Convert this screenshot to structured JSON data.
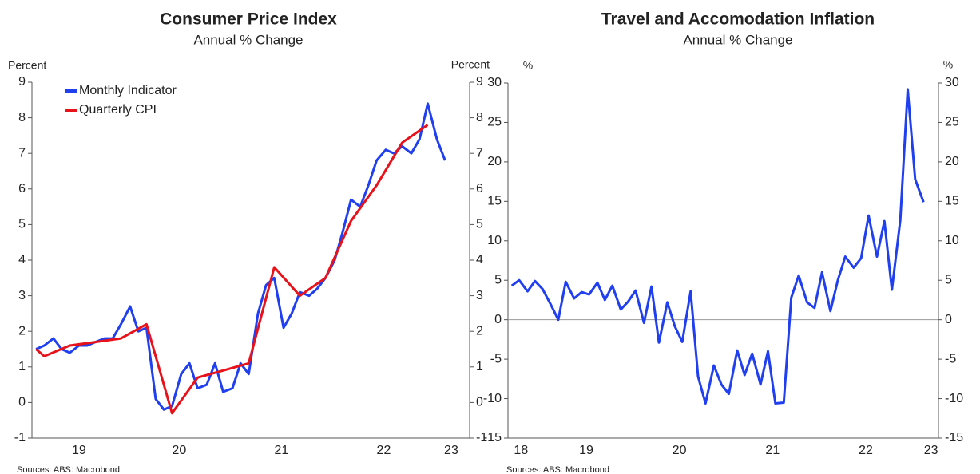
{
  "chart_data": [
    {
      "type": "line",
      "title": "Consumer Price Index",
      "subtitle": "Annual % Change",
      "ylabel": "Percent",
      "y2label": "Percent",
      "source": "Sources: ABS: Macrobond",
      "legend": "upper left",
      "zero_line": false,
      "xlim": [
        19.06,
        23.34
      ],
      "xticks": [
        {
          "value": 19.52,
          "label": "19"
        },
        {
          "value": 20.5,
          "label": "20"
        },
        {
          "value": 21.5,
          "label": "21"
        },
        {
          "value": 22.5,
          "label": "22"
        },
        {
          "value": 23.16,
          "label": "23"
        }
      ],
      "ylim": [
        -1,
        9
      ],
      "yticks": [
        -1,
        0,
        1,
        2,
        3,
        4,
        5,
        6,
        7,
        8,
        9
      ],
      "series": [
        {
          "name": "Monthly Indicator",
          "color": "#1f3ff0",
          "x": [
            19.1,
            19.18,
            19.27,
            19.35,
            19.43,
            19.52,
            19.6,
            19.68,
            19.77,
            19.85,
            19.93,
            20.02,
            20.1,
            20.18,
            20.27,
            20.35,
            20.43,
            20.52,
            20.6,
            20.68,
            20.77,
            20.85,
            20.93,
            21.02,
            21.1,
            21.18,
            21.27,
            21.35,
            21.43,
            21.52,
            21.6,
            21.68,
            21.77,
            21.85,
            21.93,
            22.02,
            22.1,
            22.18,
            22.27,
            22.35,
            22.43,
            22.52,
            22.6,
            22.68,
            22.77,
            22.85,
            22.93,
            23.02,
            23.1
          ],
          "values": [
            1.5,
            1.6,
            1.8,
            1.5,
            1.4,
            1.6,
            1.6,
            1.7,
            1.8,
            1.8,
            2.2,
            2.7,
            2.0,
            2.1,
            0.1,
            -0.2,
            -0.1,
            0.8,
            1.1,
            0.4,
            0.5,
            1.1,
            0.3,
            0.4,
            1.1,
            0.8,
            2.5,
            3.3,
            3.5,
            2.1,
            2.5,
            3.1,
            3.0,
            3.2,
            3.5,
            4.0,
            4.8,
            5.7,
            5.5,
            6.1,
            6.8,
            7.1,
            7.0,
            7.2,
            7.0,
            7.4,
            8.4,
            7.4,
            6.8
          ]
        },
        {
          "name": "Quarterly CPI",
          "color": "#e8121b",
          "x": [
            19.1,
            19.18,
            19.43,
            19.68,
            19.93,
            20.18,
            20.43,
            20.68,
            20.93,
            21.18,
            21.43,
            21.68,
            21.93,
            22.18,
            22.43,
            22.68,
            22.93
          ],
          "values": [
            1.5,
            1.3,
            1.6,
            1.7,
            1.8,
            2.2,
            -0.3,
            0.7,
            0.9,
            1.1,
            3.8,
            3.0,
            3.5,
            5.1,
            6.1,
            7.3,
            7.8
          ]
        }
      ]
    },
    {
      "type": "line",
      "title": "Travel and Accomodation Inflation",
      "subtitle": "Annual % Change",
      "ylabel": "%",
      "y2label": "%",
      "source": "Sources: ABS: Macrobond",
      "legend": "none",
      "zero_line": true,
      "xlim": [
        18.66,
        23.28
      ],
      "xticks": [
        {
          "value": 18.8,
          "label": "18"
        },
        {
          "value": 19.5,
          "label": "19"
        },
        {
          "value": 20.5,
          "label": "20"
        },
        {
          "value": 21.5,
          "label": "21"
        },
        {
          "value": 22.5,
          "label": "22"
        },
        {
          "value": 23.2,
          "label": "23"
        }
      ],
      "ylim": [
        -15,
        30
      ],
      "yticks": [
        -15,
        -10,
        -5,
        0,
        5,
        10,
        15,
        20,
        25,
        30
      ],
      "series": [
        {
          "color": "#1f3ff0",
          "x": [
            18.7,
            18.78,
            18.87,
            18.95,
            19.03,
            19.12,
            19.2,
            19.28,
            19.37,
            19.45,
            19.53,
            19.62,
            19.7,
            19.78,
            19.87,
            19.95,
            20.03,
            20.12,
            20.2,
            20.28,
            20.37,
            20.45,
            20.53,
            20.62,
            20.7,
            20.78,
            20.87,
            20.95,
            21.03,
            21.12,
            21.2,
            21.28,
            21.37,
            21.45,
            21.53,
            21.62,
            21.7,
            21.78,
            21.87,
            21.95,
            22.03,
            22.12,
            22.2,
            22.28,
            22.37,
            22.45,
            22.53,
            22.62,
            22.7,
            22.78,
            22.87,
            22.95,
            23.03,
            23.12
          ],
          "values": [
            4.3,
            5.0,
            3.6,
            4.9,
            3.9,
            1.9,
            0.0,
            4.8,
            2.7,
            3.5,
            3.2,
            4.7,
            2.5,
            4.3,
            1.3,
            2.3,
            3.7,
            -0.4,
            4.2,
            -2.9,
            2.2,
            -0.8,
            -2.8,
            3.6,
            -7.2,
            -10.6,
            -5.8,
            -8.2,
            -9.4,
            -3.9,
            -7.0,
            -4.3,
            -8.2,
            -4.0,
            -10.6,
            -10.5,
            2.8,
            5.6,
            2.2,
            1.5,
            6.0,
            1.1,
            5.0,
            8.0,
            6.6,
            7.8,
            13.2,
            8.0,
            12.5,
            3.8,
            12.6,
            29.2,
            17.8,
            14.9
          ]
        }
      ]
    }
  ]
}
